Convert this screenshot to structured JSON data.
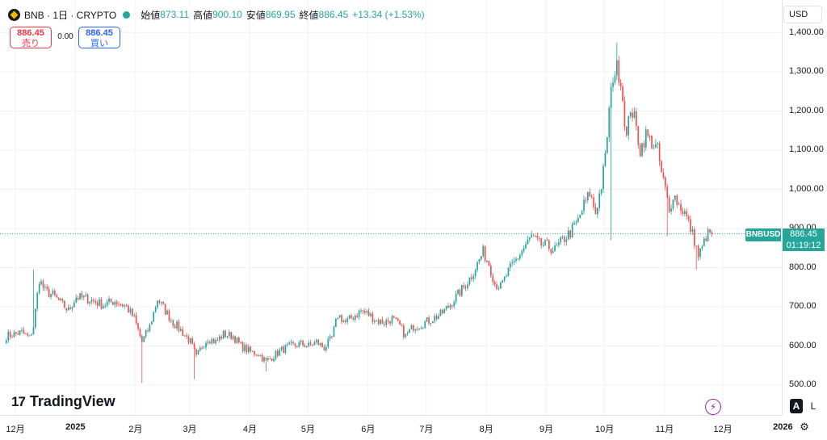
{
  "header": {
    "symbol_line": "BNB · 1日 · CRYPTO",
    "open_label": "始値",
    "open": "873.11",
    "high_label": "高値",
    "high": "900.10",
    "low_label": "安値",
    "low": "869.95",
    "close_label": "終値",
    "close": "886.45",
    "change": "+13.34 (+1.53%)"
  },
  "trade": {
    "sell_price": "886.45",
    "sell_label": "売り",
    "spread": "0.00",
    "buy_price": "886.45",
    "buy_label": "買い"
  },
  "currency": "USD",
  "last_price": {
    "symbol": "BNBUSD",
    "price": "886.45",
    "countdown": "01:19:12"
  },
  "branding": "TradingView",
  "controls": {
    "auto": "A",
    "log": "L"
  },
  "colors": {
    "up": "#26a69a",
    "down": "#ef5350",
    "grid": "#f0f3fa",
    "accent": "#2962ff"
  },
  "chart_data": {
    "type": "candlestick",
    "title": "BNB · 1日 · CRYPTO",
    "interval": "1D",
    "ylim": [
      470,
      1440
    ],
    "y_ticks": [
      500,
      600,
      700,
      800,
      900,
      1000,
      1100,
      1200,
      1300,
      1400
    ],
    "y_tick_labels": [
      "500.00",
      "600.00",
      "700.00",
      "800.00",
      "900.00",
      "1,000.00",
      "1,100.00",
      "1,200.00",
      "1,300.00",
      "1,400.00"
    ],
    "x_ticks": [
      {
        "label": "12月",
        "bar": 5,
        "year": false
      },
      {
        "label": "2025",
        "bar": 36,
        "year": true
      },
      {
        "label": "2月",
        "bar": 67,
        "year": false
      },
      {
        "label": "3月",
        "bar": 95,
        "year": false
      },
      {
        "label": "4月",
        "bar": 126,
        "year": false
      },
      {
        "label": "5月",
        "bar": 156,
        "year": false
      },
      {
        "label": "6月",
        "bar": 187,
        "year": false
      },
      {
        "label": "7月",
        "bar": 217,
        "year": false
      },
      {
        "label": "8月",
        "bar": 248,
        "year": false
      },
      {
        "label": "9月",
        "bar": 279,
        "year": false
      },
      {
        "label": "10月",
        "bar": 309,
        "year": false
      },
      {
        "label": "11月",
        "bar": 340,
        "year": false
      },
      {
        "label": "12月",
        "bar": 370,
        "year": false
      },
      {
        "label": "2026",
        "bar": 401,
        "year": true
      }
    ],
    "last_price": 886.45,
    "path": [
      [
        0,
        625
      ],
      [
        8,
        635
      ],
      [
        12,
        620
      ],
      [
        14,
        650
      ],
      [
        17,
        770
      ],
      [
        20,
        740
      ],
      [
        24,
        730
      ],
      [
        28,
        710
      ],
      [
        32,
        690
      ],
      [
        36,
        725
      ],
      [
        42,
        720
      ],
      [
        50,
        705
      ],
      [
        56,
        715
      ],
      [
        62,
        700
      ],
      [
        66,
        670
      ],
      [
        70,
        610
      ],
      [
        74,
        650
      ],
      [
        78,
        720
      ],
      [
        82,
        690
      ],
      [
        86,
        660
      ],
      [
        90,
        640
      ],
      [
        95,
        610
      ],
      [
        98,
        570
      ],
      [
        101,
        600
      ],
      [
        104,
        620
      ],
      [
        108,
        610
      ],
      [
        112,
        630
      ],
      [
        117,
        625
      ],
      [
        121,
        600
      ],
      [
        126,
        585
      ],
      [
        130,
        580
      ],
      [
        134,
        560
      ],
      [
        138,
        575
      ],
      [
        142,
        590
      ],
      [
        147,
        600
      ],
      [
        152,
        605
      ],
      [
        156,
        600
      ],
      [
        160,
        610
      ],
      [
        164,
        595
      ],
      [
        168,
        620
      ],
      [
        171,
        680
      ],
      [
        175,
        660
      ],
      [
        179,
        675
      ],
      [
        183,
        690
      ],
      [
        187,
        680
      ],
      [
        191,
        665
      ],
      [
        195,
        660
      ],
      [
        199,
        670
      ],
      [
        203,
        650
      ],
      [
        206,
        625
      ],
      [
        210,
        650
      ],
      [
        214,
        655
      ],
      [
        218,
        665
      ],
      [
        224,
        680
      ],
      [
        228,
        700
      ],
      [
        232,
        725
      ],
      [
        236,
        750
      ],
      [
        240,
        780
      ],
      [
        243,
        810
      ],
      [
        246,
        840
      ],
      [
        249,
        810
      ],
      [
        252,
        760
      ],
      [
        255,
        750
      ],
      [
        259,
        790
      ],
      [
        263,
        820
      ],
      [
        267,
        850
      ],
      [
        271,
        880
      ],
      [
        275,
        860
      ],
      [
        279,
        855
      ],
      [
        283,
        845
      ],
      [
        287,
        870
      ],
      [
        291,
        890
      ],
      [
        295,
        920
      ],
      [
        298,
        960
      ],
      [
        301,
        990
      ],
      [
        304,
        940
      ],
      [
        307,
        1010
      ],
      [
        309,
        1080
      ],
      [
        311,
        1200
      ],
      [
        313,
        1290
      ],
      [
        315,
        1310
      ],
      [
        317,
        1280
      ],
      [
        318,
        1230
      ],
      [
        320,
        1130
      ],
      [
        322,
        1210
      ],
      [
        324,
        1180
      ],
      [
        327,
        1100
      ],
      [
        330,
        1140
      ],
      [
        333,
        1120
      ],
      [
        336,
        1100
      ],
      [
        338,
        1040
      ],
      [
        340,
        1000
      ],
      [
        342,
        940
      ],
      [
        344,
        990
      ],
      [
        347,
        960
      ],
      [
        350,
        940
      ],
      [
        353,
        900
      ],
      [
        355,
        870
      ],
      [
        357,
        830
      ],
      [
        359,
        850
      ],
      [
        361,
        880
      ],
      [
        363,
        890
      ],
      [
        364,
        886.45
      ]
    ],
    "spikes": [
      {
        "bar": 312,
        "low": 870
      },
      {
        "bar": 315,
        "high": 1375
      },
      {
        "bar": 341,
        "low": 880
      },
      {
        "bar": 356,
        "low": 795
      },
      {
        "bar": 70,
        "low": 505
      },
      {
        "bar": 97,
        "low": 515
      },
      {
        "bar": 134,
        "low": 535
      },
      {
        "bar": 14,
        "high": 795
      }
    ]
  }
}
